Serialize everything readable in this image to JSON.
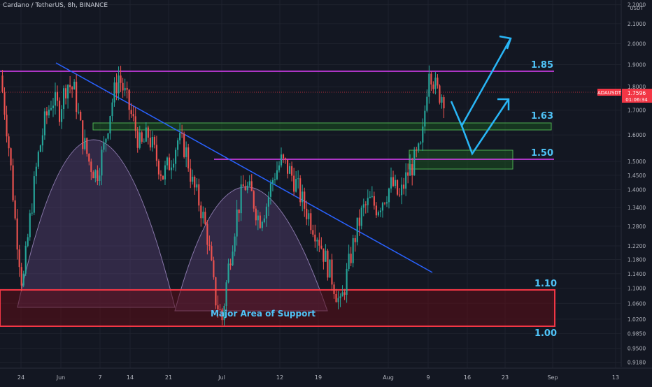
{
  "header": {
    "symbol_line": "Cardano / TetherUS, 8h, BINANCE"
  },
  "price_scale": {
    "currency_unit": "USDT",
    "labels": [
      "2.2000",
      "2.1000",
      "2.0000",
      "1.9000",
      "1.8000",
      "1.7000",
      "1.6000",
      "1.5000",
      "1.4500",
      "1.4000",
      "1.3400",
      "1.2800",
      "1.2200",
      "1.1800",
      "1.1400",
      "1.1000",
      "1.0600",
      "1.0200",
      "0.9850",
      "0.9500",
      "0.9180"
    ]
  },
  "time_scale": {
    "labels": [
      "24",
      "Jun",
      "7",
      "14",
      "21",
      "Jul",
      "12",
      "19",
      "Aug",
      "9",
      "16",
      "23",
      "Sep",
      "13"
    ]
  },
  "current_price": {
    "ticker": "ADAUSDT",
    "price": "1.7596",
    "countdown": "01:06:34",
    "color": "#f23645"
  },
  "levels": [
    {
      "label": "1.85",
      "value": 1.85,
      "color": "#e040fb"
    },
    {
      "label": "1.63",
      "value": 1.63,
      "color": "#4caf50"
    },
    {
      "label": "1.50",
      "value": 1.5,
      "color": "#e040fb"
    },
    {
      "label": "1.10",
      "value": 1.1,
      "color": "#f23645"
    },
    {
      "label": "1.00",
      "value": 1.0,
      "color": "#f23645"
    }
  ],
  "annotations": {
    "support_zone_label": "Major Area of Support"
  },
  "colors": {
    "up": "#26a69a",
    "down": "#ef5350",
    "label_cyan": "#4fc3f7",
    "trendline": "#2962ff",
    "arrow": "#29b6f6",
    "grid": "#1e222d",
    "background": "#131722"
  },
  "chart_data": {
    "type": "candlestick",
    "title": "Cardano / TetherUS, 8h, BINANCE",
    "xlabel": "",
    "ylabel": "",
    "ylim": [
      0.9,
      2.25
    ],
    "y_scale": "log",
    "x_ticks": [
      "24",
      "Jun",
      "7",
      "14",
      "21",
      "Jul",
      "12",
      "19",
      "Aug",
      "9",
      "16",
      "23",
      "Sep",
      "13"
    ],
    "series": [
      {
        "values": [
          1.85,
          1.6,
          1.3,
          1.1,
          1.3,
          1.5,
          1.65,
          1.75,
          1.7,
          1.82,
          1.78,
          1.6,
          1.5,
          1.45,
          1.55,
          1.72,
          1.85,
          1.75,
          1.65,
          1.55,
          1.6,
          1.52,
          1.45,
          1.5,
          1.58,
          1.55,
          1.42,
          1.35,
          1.25,
          1.08,
          1.02,
          1.18,
          1.32,
          1.42,
          1.38,
          1.3,
          1.35,
          1.45,
          1.5,
          1.47,
          1.42,
          1.35,
          1.3,
          1.25,
          1.18,
          1.12,
          1.05,
          1.15,
          1.25,
          1.33,
          1.36,
          1.34,
          1.38,
          1.42,
          1.37,
          1.45,
          1.5,
          1.55,
          1.9,
          1.78,
          1.76
        ]
      }
    ]
  }
}
